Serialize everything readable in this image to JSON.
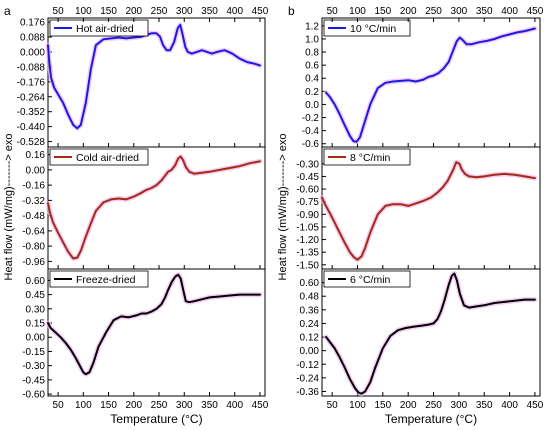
{
  "panel_labels": [
    "a",
    "b"
  ],
  "chart_data": [
    {
      "panel": "a",
      "type": "line",
      "xlabel": "Temperature (°C)",
      "ylabel": "Heat flow  (mW/mg)-------> exo",
      "xlim": [
        30,
        460
      ],
      "xticks": [
        50,
        100,
        150,
        200,
        250,
        300,
        350,
        400,
        450
      ],
      "subplots": [
        {
          "name": "Hot air-dried",
          "color": "#1a1ae6",
          "ylim": [
            -0.56,
            0.2
          ],
          "yticks": [
            "0.176",
            "0.088",
            "0.000",
            "-0.088",
            "-0.176",
            "-0.264",
            "-0.352",
            "-0.440",
            "-0.528"
          ],
          "ytick_values": [
            0.176,
            0.088,
            0.0,
            -0.088,
            -0.176,
            -0.264,
            -0.352,
            -0.44,
            -0.528
          ],
          "x": [
            30,
            32,
            36,
            42,
            50,
            60,
            70,
            80,
            88,
            95,
            105,
            115,
            125,
            140,
            155,
            170,
            185,
            200,
            215,
            225,
            235,
            245,
            252,
            258,
            265,
            272,
            280,
            287,
            292,
            297,
            302,
            307,
            315,
            325,
            335,
            345,
            355,
            365,
            380,
            395,
            410,
            425,
            440,
            450
          ],
          "y": [
            0.04,
            -0.04,
            -0.15,
            -0.21,
            -0.25,
            -0.3,
            -0.37,
            -0.43,
            -0.45,
            -0.43,
            -0.3,
            -0.1,
            0.04,
            0.075,
            0.08,
            0.085,
            0.08,
            0.085,
            0.09,
            0.1,
            0.11,
            0.11,
            0.09,
            0.04,
            0.01,
            0.01,
            0.06,
            0.14,
            0.16,
            0.1,
            0.03,
            0.0,
            -0.01,
            0.0,
            0.01,
            0.0,
            -0.01,
            0.0,
            0.01,
            -0.01,
            -0.04,
            -0.06,
            -0.07,
            -0.08
          ]
        },
        {
          "name": "Cold air-dried",
          "color": "#a52a12",
          "ylim": [
            -1.04,
            0.24
          ],
          "yticks": [
            "0.16",
            "0.00",
            "-0.16",
            "-0.32",
            "-0.48",
            "-0.64",
            "-0.80",
            "-0.96"
          ],
          "ytick_values": [
            0.16,
            0.0,
            -0.16,
            -0.32,
            -0.48,
            -0.64,
            -0.8,
            -0.96
          ],
          "x": [
            30,
            34,
            40,
            50,
            60,
            70,
            80,
            88,
            95,
            105,
            115,
            125,
            140,
            155,
            170,
            185,
            200,
            215,
            225,
            235,
            245,
            255,
            262,
            268,
            275,
            282,
            288,
            293,
            298,
            303,
            310,
            320,
            335,
            350,
            370,
            390,
            410,
            430,
            450
          ],
          "y": [
            -0.35,
            -0.45,
            -0.55,
            -0.66,
            -0.76,
            -0.86,
            -0.93,
            -0.92,
            -0.85,
            -0.7,
            -0.56,
            -0.43,
            -0.34,
            -0.31,
            -0.3,
            -0.31,
            -0.28,
            -0.24,
            -0.21,
            -0.19,
            -0.16,
            -0.11,
            -0.06,
            -0.02,
            0.0,
            0.05,
            0.12,
            0.14,
            0.1,
            0.03,
            -0.02,
            -0.04,
            -0.03,
            -0.02,
            0.0,
            0.02,
            0.04,
            0.07,
            0.09
          ]
        },
        {
          "name": "Freeze-dried",
          "color": "#000000",
          "ylim": [
            -0.62,
            0.72
          ],
          "yticks": [
            "0.60",
            "0.45",
            "0.30",
            "0.15",
            "0.00",
            "-0.15",
            "-0.30",
            "-0.45",
            "-0.60"
          ],
          "ytick_values": [
            0.6,
            0.45,
            0.3,
            0.15,
            0.0,
            -0.15,
            -0.3,
            -0.45,
            -0.6
          ],
          "x": [
            30,
            35,
            45,
            55,
            65,
            75,
            85,
            95,
            100,
            105,
            112,
            120,
            130,
            145,
            160,
            175,
            190,
            205,
            215,
            225,
            235,
            245,
            255,
            262,
            268,
            275,
            282,
            288,
            293,
            298,
            303,
            310,
            320,
            335,
            350,
            370,
            390,
            410,
            430,
            450
          ],
          "y": [
            0.15,
            0.1,
            0.05,
            0.0,
            -0.06,
            -0.13,
            -0.22,
            -0.32,
            -0.37,
            -0.39,
            -0.37,
            -0.27,
            -0.1,
            0.05,
            0.18,
            0.22,
            0.21,
            0.23,
            0.25,
            0.25,
            0.27,
            0.3,
            0.35,
            0.42,
            0.5,
            0.58,
            0.64,
            0.66,
            0.62,
            0.5,
            0.38,
            0.37,
            0.38,
            0.4,
            0.42,
            0.43,
            0.44,
            0.45,
            0.45,
            0.45
          ]
        }
      ]
    },
    {
      "panel": "b",
      "type": "line",
      "xlabel": "Temperature (°C)",
      "ylabel": "Heat flow  (mW/mg)-------> exo",
      "xlim": [
        30,
        460
      ],
      "xticks": [
        50,
        100,
        150,
        200,
        250,
        300,
        350,
        400,
        450
      ],
      "subplots": [
        {
          "name": "10 °C/min",
          "color": "#1a1ae6",
          "ylim": [
            -0.65,
            1.32
          ],
          "yticks": [
            "1.2",
            "1.0",
            "0.8",
            "0.6",
            "0.4",
            "0.2",
            "0.0",
            "-0.2",
            "-0.4",
            "-0.6"
          ],
          "ytick_values": [
            1.2,
            1.0,
            0.8,
            0.6,
            0.4,
            0.2,
            0.0,
            -0.2,
            -0.4,
            -0.6
          ],
          "x": [
            38,
            45,
            55,
            65,
            75,
            85,
            92,
            98,
            105,
            115,
            125,
            140,
            155,
            170,
            185,
            200,
            215,
            230,
            240,
            250,
            260,
            270,
            280,
            290,
            296,
            302,
            308,
            315,
            325,
            340,
            355,
            370,
            385,
            400,
            415,
            430,
            450
          ],
          "y": [
            0.18,
            0.12,
            0.0,
            -0.15,
            -0.32,
            -0.48,
            -0.56,
            -0.57,
            -0.5,
            -0.25,
            0.0,
            0.25,
            0.33,
            0.35,
            0.36,
            0.37,
            0.35,
            0.38,
            0.42,
            0.44,
            0.48,
            0.55,
            0.65,
            0.85,
            0.97,
            1.02,
            0.98,
            0.92,
            0.92,
            0.95,
            0.97,
            1.0,
            1.04,
            1.07,
            1.1,
            1.12,
            1.16
          ]
        },
        {
          "name": "8 °C/min",
          "color": "#a52a12",
          "ylim": [
            -1.55,
            -0.1
          ],
          "yticks": [
            "-0.30",
            "-0.45",
            "-0.60",
            "-0.75",
            "-0.90",
            "-1.05",
            "-1.20",
            "-1.35",
            "-1.50"
          ],
          "ytick_values": [
            -0.3,
            -0.45,
            -0.6,
            -0.75,
            -0.9,
            -1.05,
            -1.2,
            -1.35,
            -1.5
          ],
          "x": [
            30,
            36,
            45,
            55,
            65,
            75,
            85,
            93,
            100,
            108,
            115,
            125,
            140,
            155,
            170,
            185,
            200,
            215,
            230,
            245,
            258,
            268,
            278,
            288,
            295,
            301,
            306,
            312,
            320,
            335,
            350,
            370,
            390,
            410,
            430,
            450
          ],
          "y": [
            -0.7,
            -0.78,
            -0.88,
            -1.0,
            -1.12,
            -1.24,
            -1.35,
            -1.41,
            -1.44,
            -1.4,
            -1.3,
            -1.12,
            -0.9,
            -0.8,
            -0.78,
            -0.78,
            -0.8,
            -0.77,
            -0.74,
            -0.7,
            -0.64,
            -0.58,
            -0.5,
            -0.38,
            -0.28,
            -0.3,
            -0.37,
            -0.42,
            -0.45,
            -0.46,
            -0.45,
            -0.43,
            -0.42,
            -0.43,
            -0.45,
            -0.47
          ]
        },
        {
          "name": "6 °C/min",
          "color": "#000000",
          "ylim": [
            -0.4,
            0.72
          ],
          "yticks": [
            "0.60",
            "0.48",
            "0.36",
            "0.24",
            "0.12",
            "0.00",
            "-0.12",
            "-0.24",
            "-0.36"
          ],
          "ytick_values": [
            0.6,
            0.48,
            0.36,
            0.24,
            0.12,
            0.0,
            -0.12,
            -0.24,
            -0.36
          ],
          "x": [
            38,
            45,
            55,
            65,
            75,
            85,
            95,
            102,
            108,
            115,
            125,
            135,
            150,
            165,
            180,
            195,
            210,
            225,
            240,
            250,
            258,
            265,
            272,
            280,
            286,
            291,
            296,
            302,
            310,
            320,
            335,
            350,
            370,
            390,
            410,
            430,
            450
          ],
          "y": [
            0.12,
            0.08,
            0.02,
            -0.06,
            -0.15,
            -0.25,
            -0.33,
            -0.37,
            -0.38,
            -0.36,
            -0.28,
            -0.15,
            0.02,
            0.13,
            0.18,
            0.2,
            0.21,
            0.22,
            0.23,
            0.24,
            0.28,
            0.35,
            0.45,
            0.58,
            0.66,
            0.68,
            0.62,
            0.5,
            0.4,
            0.38,
            0.39,
            0.4,
            0.42,
            0.43,
            0.44,
            0.45,
            0.45
          ]
        }
      ]
    }
  ]
}
